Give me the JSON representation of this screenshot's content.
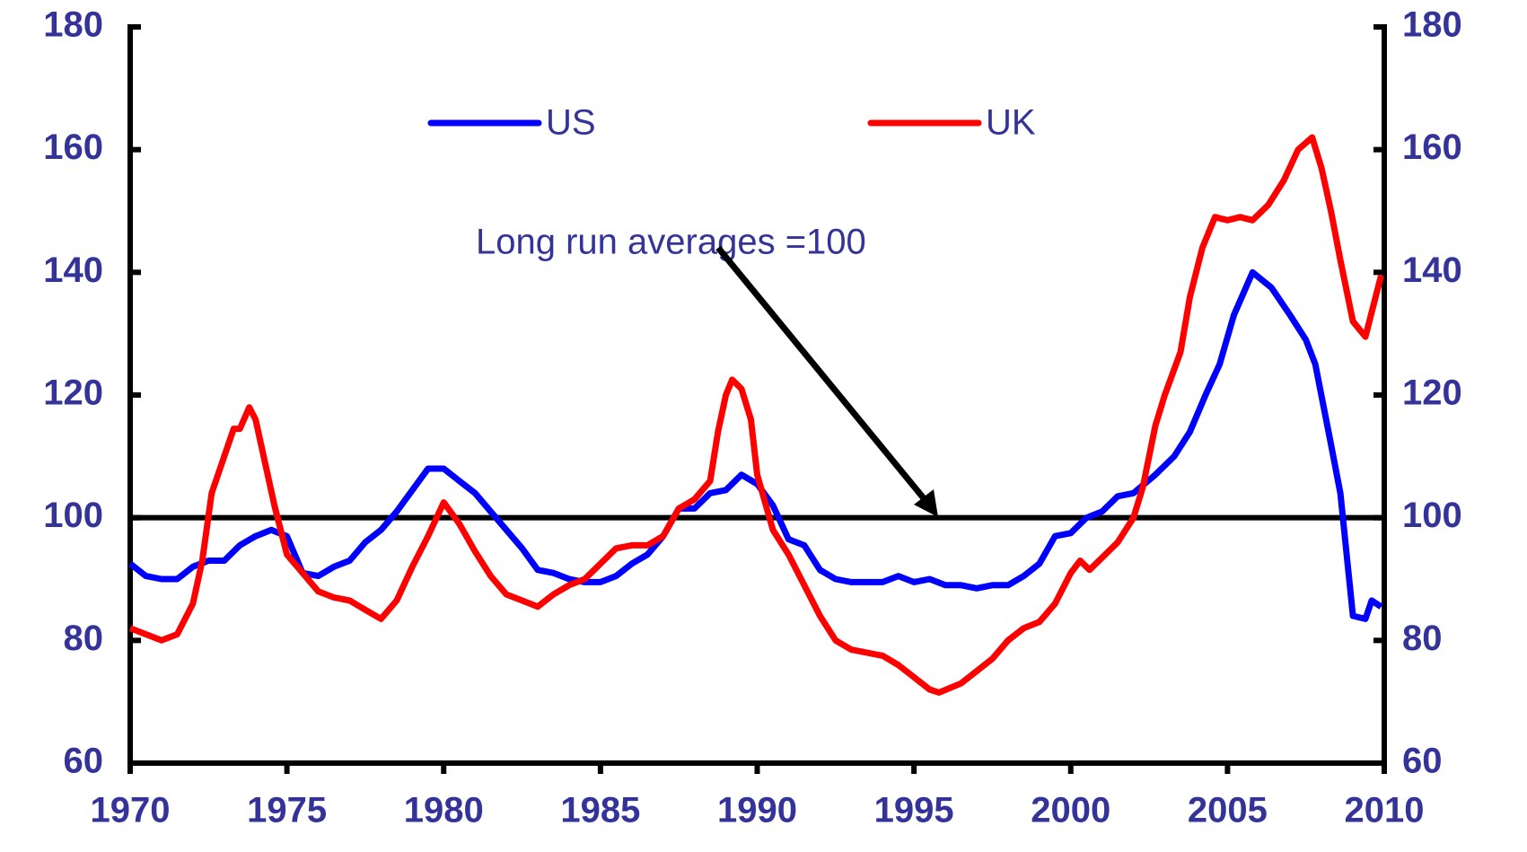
{
  "chart_data": {
    "type": "line",
    "annotation": "Long run averages =100",
    "reference_line": 100,
    "xlim": [
      1970,
      2010
    ],
    "xticks": [
      1970,
      1975,
      1980,
      1985,
      1990,
      1995,
      2000,
      2005,
      2010
    ],
    "ylim": [
      60,
      180
    ],
    "yticks": [
      60,
      80,
      100,
      120,
      140,
      160,
      180
    ],
    "y2lim": [
      60,
      180
    ],
    "y2ticks": [
      60,
      80,
      100,
      120,
      140,
      160,
      180
    ],
    "series": [
      {
        "name": "US",
        "color": "#0000ff",
        "x": [
          1970,
          1970.5,
          1971,
          1971.5,
          1972,
          1972.5,
          1973,
          1973.5,
          1974,
          1974.5,
          1975,
          1975.5,
          1976,
          1976.5,
          1977,
          1977.5,
          1978,
          1978.5,
          1979,
          1979.5,
          1980,
          1980.5,
          1981,
          1981.5,
          1982,
          1982.5,
          1983,
          1983.5,
          1984,
          1984.5,
          1985,
          1985.5,
          1986,
          1986.5,
          1987,
          1987.5,
          1988,
          1988.5,
          1989,
          1989.5,
          1990,
          1990.5,
          1991,
          1991.5,
          1992,
          1992.5,
          1993,
          1993.5,
          1994,
          1994.5,
          1995,
          1995.5,
          1996,
          1996.5,
          1997,
          1997.5,
          1998,
          1998.5,
          1999,
          1999.5,
          2000,
          2000.5,
          2001,
          2001.5,
          2002,
          2002.7,
          2003.3,
          2003.8,
          2004.3,
          2004.75,
          2005.2,
          2005.8,
          2006.4,
          2007,
          2007.5,
          2007.8,
          2008.3,
          2008.6,
          2009,
          2009.4,
          2009.6,
          2009.9
        ],
        "values": [
          92.5,
          90.5,
          90,
          90,
          92,
          93,
          93,
          95.5,
          97,
          98,
          97,
          91,
          90.5,
          92,
          93,
          96,
          98,
          101,
          104.5,
          108,
          108,
          106,
          104,
          101,
          98,
          95,
          91.5,
          91,
          90,
          89.5,
          89.5,
          90.5,
          92.5,
          94,
          97,
          101.5,
          101.5,
          104,
          104.5,
          107,
          105.5,
          102,
          96.5,
          95.5,
          91.5,
          90,
          89.5,
          89.5,
          89.5,
          90.5,
          89.5,
          90,
          89,
          89,
          88.5,
          89,
          89,
          90.5,
          92.5,
          97,
          97.5,
          100,
          101,
          103.5,
          104,
          107,
          110,
          114,
          120,
          125,
          133,
          140,
          137.5,
          133,
          129,
          125,
          112,
          104,
          84,
          83.5,
          86.5,
          85.5
        ]
      },
      {
        "name": "UK",
        "color": "#ff0000",
        "x": [
          1970,
          1970.5,
          1971,
          1971.5,
          1972,
          1972.3,
          1972.6,
          1973,
          1973.3,
          1973.5,
          1973.8,
          1974,
          1974.3,
          1974.6,
          1975,
          1975.5,
          1976,
          1976.5,
          1977,
          1977.5,
          1978,
          1978.5,
          1979,
          1979.5,
          1980,
          1980.5,
          1981,
          1981.5,
          1982,
          1982.5,
          1983,
          1983.5,
          1984,
          1984.5,
          1985,
          1985.5,
          1986,
          1986.5,
          1987,
          1987.5,
          1988,
          1988.5,
          1988.75,
          1989,
          1989.2,
          1989.5,
          1989.8,
          1990,
          1990.5,
          1991,
          1991.5,
          1992,
          1992.5,
          1993,
          1993.5,
          1994,
          1994.5,
          1995,
          1995.5,
          1995.8,
          1996.5,
          1997,
          1997.5,
          1998,
          1998.5,
          1999,
          1999.5,
          2000,
          2000.3,
          2000.6,
          2001,
          2001.5,
          2002,
          2002.3,
          2002.7,
          2003,
          2003.5,
          2003.8,
          2004.2,
          2004.6,
          2005,
          2005.4,
          2005.8,
          2006.3,
          2006.8,
          2007.25,
          2007.7,
          2008,
          2008.3,
          2008.6,
          2009,
          2009.4,
          2009.9
        ],
        "values": [
          82,
          81,
          80,
          81,
          86,
          93,
          104,
          110,
          114.5,
          114.5,
          118,
          116,
          109,
          102,
          94,
          91,
          88,
          87,
          86.5,
          85,
          83.5,
          86.5,
          92,
          97,
          102.5,
          99,
          94.5,
          90.5,
          87.5,
          86.5,
          85.5,
          87.5,
          89,
          90,
          92.5,
          95,
          95.5,
          95.5,
          97,
          101.5,
          103,
          106,
          114,
          120,
          122.5,
          121,
          116,
          107,
          98,
          94,
          89,
          84,
          80,
          78.5,
          78,
          77.5,
          76,
          74,
          72,
          71.5,
          73,
          75,
          77,
          80,
          82,
          83,
          86,
          91,
          93,
          91.5,
          93.5,
          96,
          100,
          105,
          115,
          120,
          127,
          136,
          144,
          149,
          148.5,
          149,
          148.5,
          151,
          155,
          160,
          162,
          157,
          150,
          142,
          132,
          129.5,
          139.5
        ]
      }
    ]
  }
}
